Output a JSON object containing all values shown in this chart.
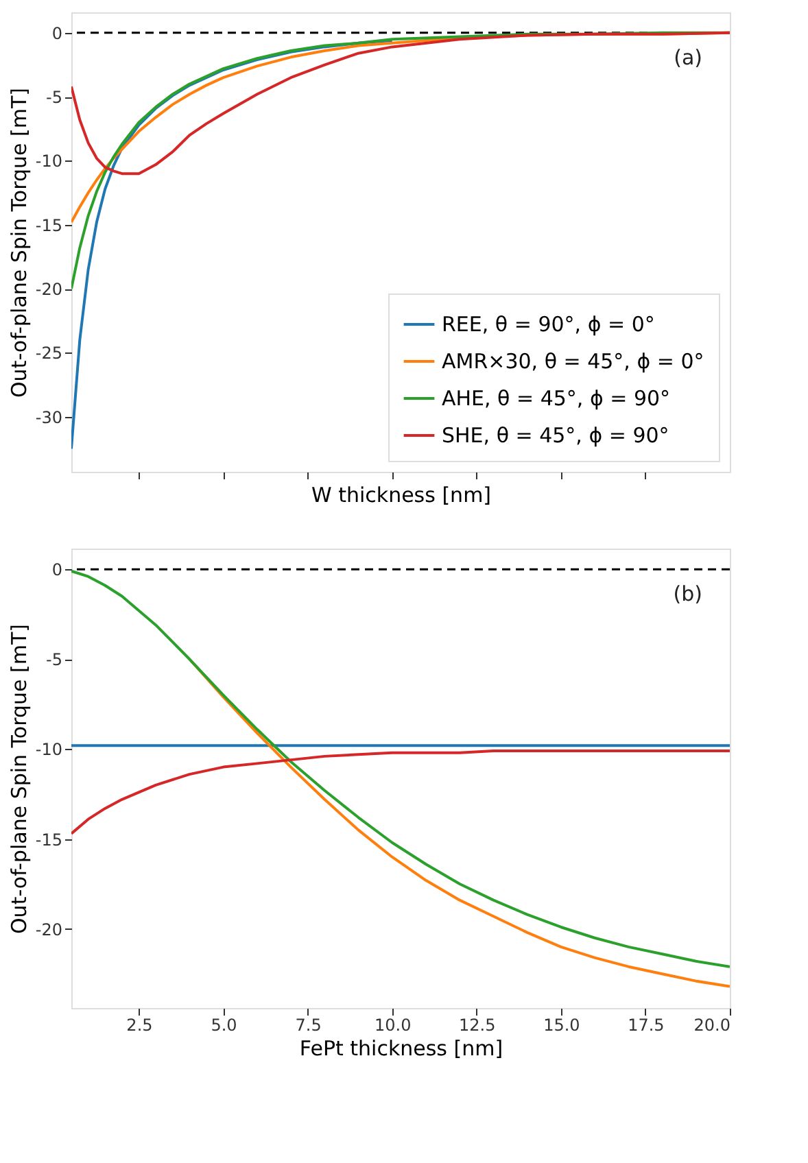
{
  "chart_data": [
    {
      "type": "line",
      "xlabel": "W thickness [nm]",
      "ylabel": "Out-of-plane Spin Torque [mT]",
      "xlim": [
        0.5,
        20
      ],
      "ylim": [
        -34.3,
        1.6
      ],
      "xticks": [
        {
          "value": 2.5,
          "label": null
        },
        {
          "value": 5,
          "label": null
        },
        {
          "value": 7.5,
          "label": null
        },
        {
          "value": 10,
          "label": null
        },
        {
          "value": 12.5,
          "label": null
        },
        {
          "value": 15,
          "label": null
        },
        {
          "value": 17.5,
          "label": null
        }
      ],
      "yticks": [
        0,
        -5,
        -10,
        -15,
        -20,
        -25,
        -30
      ],
      "tick_labels": "y",
      "grid": false,
      "legend": "bottom right",
      "x": [
        0.5,
        0.75,
        1,
        1.25,
        1.5,
        1.75,
        2,
        2.5,
        3,
        3.5,
        4,
        4.5,
        5,
        6,
        7,
        8,
        9,
        10,
        12,
        14,
        16,
        18,
        20
      ],
      "series": [
        {
          "name": "REE, θ = 90°, ϕ = 0°",
          "color": "#1f77b4",
          "values": [
            -32.5,
            -24.0,
            -18.5,
            -14.8,
            -12.2,
            -10.4,
            -9.0,
            -7.2,
            -5.9,
            -4.9,
            -4.1,
            -3.5,
            -2.9,
            -2.1,
            -1.5,
            -1.1,
            -0.8,
            -0.6,
            null,
            null,
            null,
            null,
            null
          ]
        },
        {
          "name": "AMR×30, θ = 45°, ϕ = 0°",
          "color": "#ff7f0e",
          "values": [
            -14.8,
            -13.6,
            -12.5,
            -11.5,
            -10.6,
            -9.8,
            -9.1,
            -7.7,
            -6.6,
            -5.6,
            -4.8,
            -4.1,
            -3.5,
            -2.6,
            -1.9,
            -1.4,
            -1.0,
            -0.8,
            -0.4,
            -0.2,
            -0.1,
            -0.1,
            0.0
          ]
        },
        {
          "name": "AHE, θ = 45°, ϕ = 90°",
          "color": "#2ca02c",
          "values": [
            -20.0,
            -16.8,
            -14.3,
            -12.4,
            -10.9,
            -9.7,
            -8.7,
            -7.0,
            -5.8,
            -4.8,
            -4.0,
            -3.4,
            -2.8,
            -2.0,
            -1.4,
            -1.0,
            -0.8,
            -0.5,
            -0.3,
            -0.1,
            -0.1,
            0.0,
            0.0
          ]
        },
        {
          "name": "SHE, θ = 45°, ϕ = 90°",
          "color": "#d62728",
          "values": [
            -4.2,
            -6.8,
            -8.6,
            -9.8,
            -10.5,
            -10.8,
            -11.0,
            -11.0,
            -10.3,
            -9.3,
            -8.0,
            -7.1,
            -6.3,
            -4.8,
            -3.5,
            -2.5,
            -1.6,
            -1.1,
            -0.5,
            -0.2,
            -0.1,
            -0.1,
            0.0
          ]
        }
      ],
      "ref_lines": [
        {
          "axis": "y",
          "value": 0,
          "color": "#000000",
          "line_style": "dashed"
        }
      ],
      "annotations": [
        "(a)"
      ]
    },
    {
      "type": "line",
      "xlabel": "FePt thickness [nm]",
      "ylabel": "Out-of-plane Spin Torque [mT]",
      "xlim": [
        0.5,
        20
      ],
      "ylim": [
        -24.4,
        1.15
      ],
      "xticks": [
        {
          "value": 2.5,
          "label": "2.5"
        },
        {
          "value": 5,
          "label": "5.0"
        },
        {
          "value": 7.5,
          "label": "7.5"
        },
        {
          "value": 10,
          "label": "10.0"
        },
        {
          "value": 12.5,
          "label": "12.5"
        },
        {
          "value": 15,
          "label": "15.0"
        },
        {
          "value": 17.5,
          "label": "17.5"
        },
        {
          "value": 20,
          "label": "20.0"
        }
      ],
      "yticks": [
        0,
        -5,
        -10,
        -15,
        -20
      ],
      "grid": false,
      "legend": false,
      "x": [
        0.5,
        1,
        1.5,
        2,
        2.5,
        3,
        4,
        5,
        6,
        7,
        8,
        9,
        10,
        11,
        12,
        13,
        14,
        15,
        16,
        17,
        18,
        19,
        20
      ],
      "series": [
        {
          "color": "#1f77b4",
          "values": [
            -9.8,
            -9.8,
            -9.8,
            -9.8,
            -9.8,
            -9.8,
            -9.8,
            -9.8,
            -9.8,
            -9.8,
            -9.8,
            -9.8,
            -9.8,
            -9.8,
            -9.8,
            -9.8,
            -9.8,
            -9.8,
            -9.8,
            -9.8,
            -9.8,
            -9.8,
            -9.8
          ]
        },
        {
          "color": "#ff7f0e",
          "values": [
            null,
            null,
            null,
            null,
            null,
            null,
            -5.0,
            -7.1,
            -9.1,
            -11.0,
            -12.8,
            -14.5,
            -16.0,
            -17.3,
            -18.4,
            -19.3,
            -20.2,
            -21.0,
            -21.6,
            -22.1,
            -22.5,
            -22.9,
            -23.2
          ]
        },
        {
          "color": "#2ca02c",
          "values": [
            -0.1,
            -0.4,
            -0.9,
            -1.5,
            -2.3,
            -3.1,
            -5.0,
            -7.0,
            -8.9,
            -10.7,
            -12.3,
            -13.8,
            -15.2,
            -16.4,
            -17.5,
            -18.4,
            -19.2,
            -19.9,
            -20.5,
            -21.0,
            -21.4,
            -21.8,
            -22.1
          ]
        },
        {
          "color": "#d62728",
          "values": [
            -14.7,
            -13.9,
            -13.3,
            -12.8,
            -12.4,
            -12.0,
            -11.4,
            -11.0,
            -10.8,
            -10.6,
            -10.4,
            -10.3,
            -10.2,
            -10.2,
            -10.2,
            -10.1,
            -10.1,
            -10.1,
            -10.1,
            -10.1,
            -10.1,
            -10.1,
            -10.1
          ]
        }
      ],
      "ref_lines": [
        {
          "axis": "y",
          "value": 0,
          "color": "#000000",
          "line_style": "dashed"
        }
      ],
      "annotations": [
        "(b)"
      ]
    }
  ]
}
